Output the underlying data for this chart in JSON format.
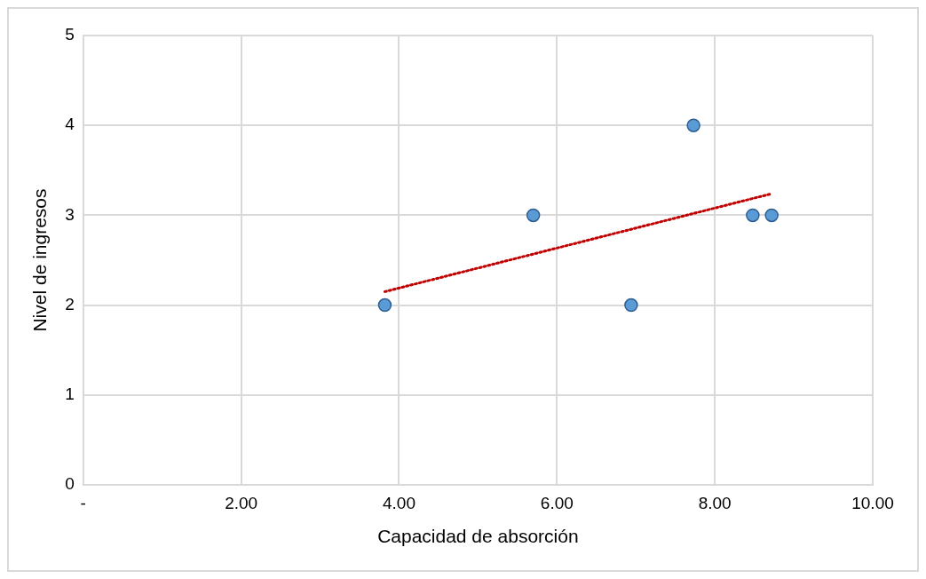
{
  "chart_data": {
    "type": "scatter",
    "xlabel": "Capacidad de absorción",
    "ylabel": "Nivel de ingresos",
    "xlim": [
      0,
      10
    ],
    "ylim": [
      0,
      5
    ],
    "xticks": [
      {
        "value": 0,
        "label": "-"
      },
      {
        "value": 2,
        "label": "2.00"
      },
      {
        "value": 4,
        "label": "4.00"
      },
      {
        "value": 6,
        "label": "6.00"
      },
      {
        "value": 8,
        "label": "8.00"
      },
      {
        "value": 10,
        "label": "10.00"
      }
    ],
    "yticks": [
      0,
      1,
      2,
      3,
      4,
      5
    ],
    "grid": true,
    "legend": false,
    "series": [
      {
        "type": "scatter",
        "color": "#5b9bd5",
        "marker": "circle",
        "x": [
          3.82,
          5.7,
          6.94,
          7.73,
          8.48,
          8.72
        ],
        "values": [
          2,
          3,
          2,
          4,
          3,
          3
        ]
      },
      {
        "type": "line",
        "color": "#c00000",
        "marker": "none",
        "line_style": "dotted",
        "x": [
          3.82,
          8.72
        ],
        "values": [
          2.15,
          3.24
        ]
      }
    ]
  }
}
